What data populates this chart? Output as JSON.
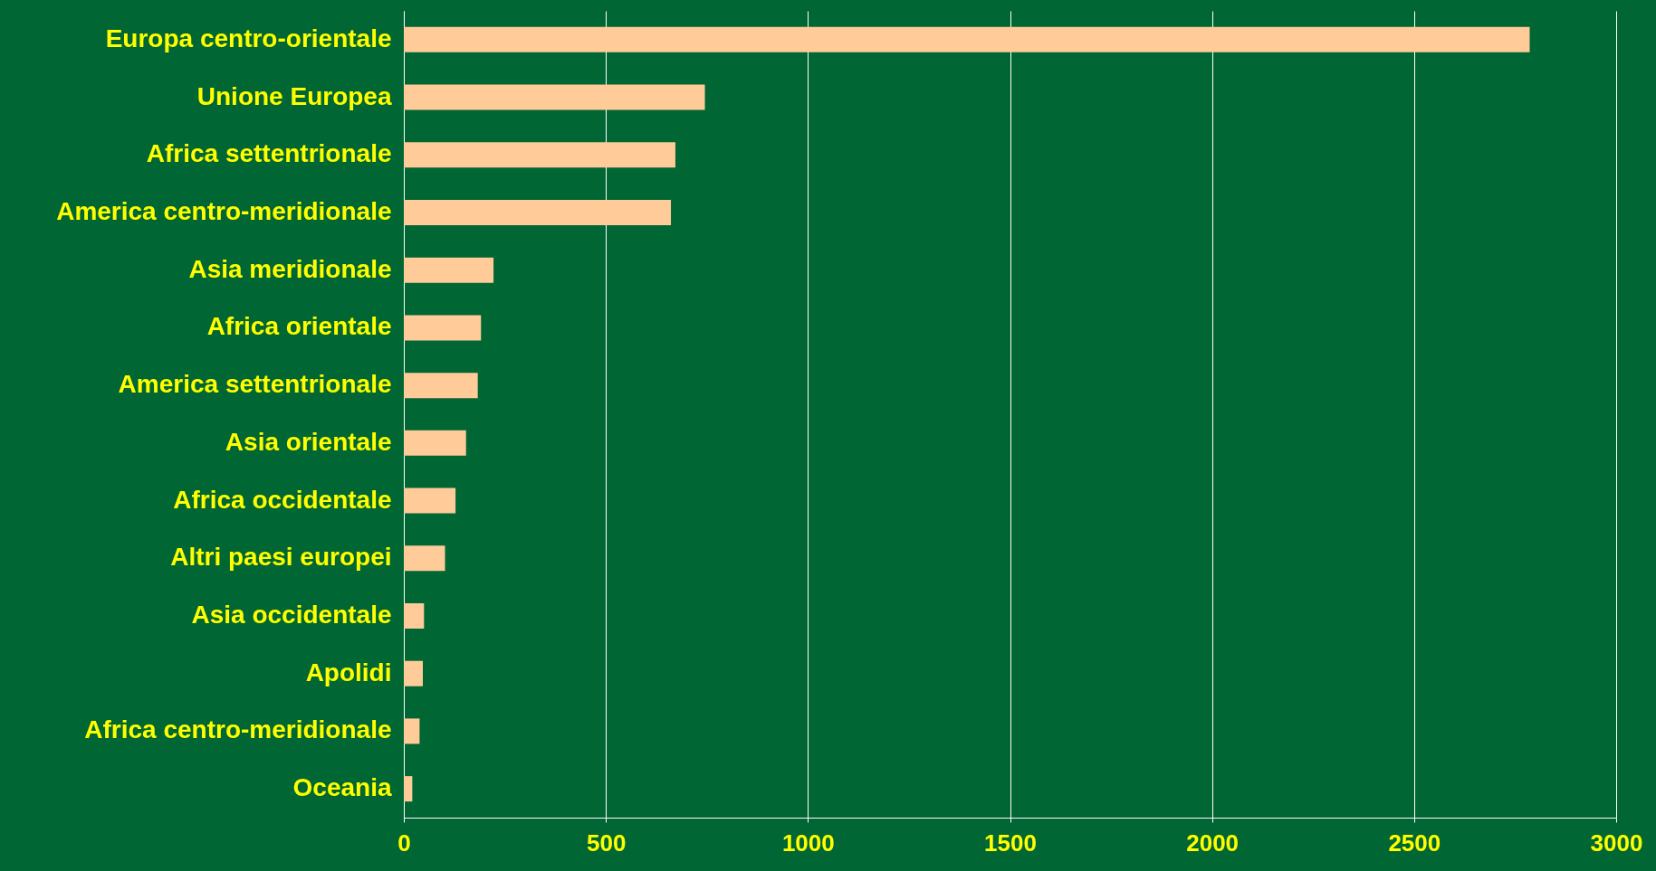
{
  "chart_data": {
    "type": "bar",
    "orientation": "horizontal",
    "categories": [
      "Europa centro-orientale",
      "Unione Europea",
      "Africa settentrionale",
      "America centro-meridionale",
      "Asia meridionale",
      "Africa orientale",
      "America settentrionale",
      "Asia orientale",
      "Africa occidentale",
      "Altri paesi europei",
      "Asia occidentale",
      "Apolidi",
      "Africa centro-meridionale",
      "Oceania"
    ],
    "values": [
      2786,
      745,
      672,
      661,
      222,
      191,
      183,
      154,
      128,
      102,
      50,
      47,
      39,
      21
    ],
    "color": "#ffcc99",
    "xlim": [
      0,
      3000
    ],
    "xticks": [
      0,
      500,
      1000,
      1500,
      2000,
      2500,
      3000
    ],
    "grid": "x"
  }
}
